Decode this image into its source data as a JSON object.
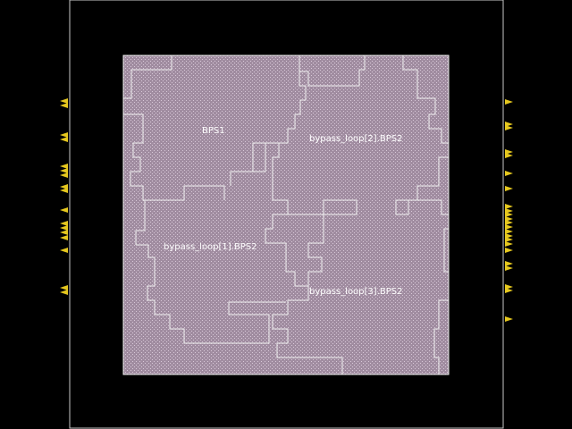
{
  "colors": {
    "background": "#000000",
    "die_boundary": "#c8c8c8",
    "core_fill": "#a08ca0",
    "core_hatch": "#d8c8d8",
    "region_outline": "#f0f0f0",
    "pin": "#e6c81e",
    "label": "#ffffff"
  },
  "labels": {
    "bps1": "BPS1",
    "bypass2": "bypass_loop[2].BPS2",
    "bypass1": "bypass_loop[1].BPS2",
    "bypass3": "bypass_loop[3].BPS2"
  },
  "pin_counts": {
    "left": 22,
    "right": 24
  },
  "icons": {
    "pin": "pin-triangle-icon"
  }
}
